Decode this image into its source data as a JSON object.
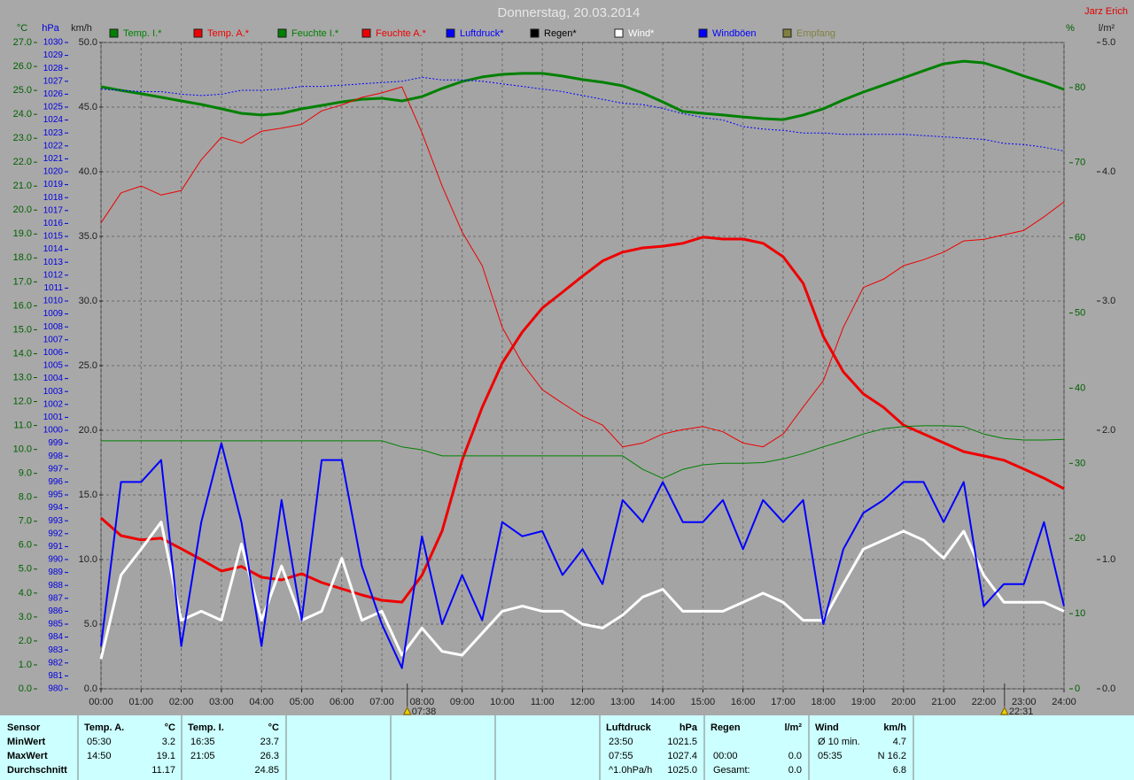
{
  "chart_data": {
    "type": "line",
    "title": "Donnerstag, 20.03.2014",
    "author": "Jarz Erich",
    "grid": true,
    "axes": {
      "c": {
        "label": "°C",
        "color": "#006000",
        "lim": [
          0,
          27
        ],
        "ticks": [
          {
            "value": 0,
            "label": "0.0"
          },
          {
            "value": 1,
            "label": "1.0"
          },
          {
            "value": 2,
            "label": "2.0"
          },
          {
            "value": 3,
            "label": "3.0"
          },
          {
            "value": 4,
            "label": "4.0"
          },
          {
            "value": 5,
            "label": "5.0"
          },
          {
            "value": 6,
            "label": "6.0"
          },
          {
            "value": 7,
            "label": "7.0"
          },
          {
            "value": 8,
            "label": "8.0"
          },
          {
            "value": 9,
            "label": "9.0"
          },
          {
            "value": 10,
            "label": "10.0"
          },
          {
            "value": 11,
            "label": "11.0"
          },
          {
            "value": 12,
            "label": "12.0"
          },
          {
            "value": 13,
            "label": "13.0"
          },
          {
            "value": 14,
            "label": "14.0"
          },
          {
            "value": 15,
            "label": "15.0"
          },
          {
            "value": 16,
            "label": "16.0"
          },
          {
            "value": 17,
            "label": "17.0"
          },
          {
            "value": 18,
            "label": "18.0"
          },
          {
            "value": 19,
            "label": "19.0"
          },
          {
            "value": 20,
            "label": "20.0"
          },
          {
            "value": 21,
            "label": "21.0"
          },
          {
            "value": 22,
            "label": "22.0"
          },
          {
            "value": 23,
            "label": "23.0"
          },
          {
            "value": 24,
            "label": "24.0"
          },
          {
            "value": 25,
            "label": "25.0"
          },
          {
            "value": 26,
            "label": "26.0"
          },
          {
            "value": 27,
            "label": "27.0"
          }
        ]
      },
      "hpa": {
        "label": "hPa",
        "color": "#0000e0",
        "lim": [
          980,
          1030
        ],
        "ticks": [
          980,
          981,
          982,
          983,
          984,
          985,
          986,
          987,
          988,
          989,
          990,
          991,
          992,
          993,
          994,
          995,
          996,
          997,
          998,
          999,
          1000,
          1001,
          1002,
          1003,
          1004,
          1005,
          1006,
          1007,
          1008,
          1009,
          1010,
          1011,
          1012,
          1013,
          1014,
          1015,
          1016,
          1017,
          1018,
          1019,
          1020,
          1021,
          1022,
          1023,
          1024,
          1025,
          1026,
          1027,
          1028,
          1029,
          1030
        ]
      },
      "kmh": {
        "label": "km/h",
        "color": "#202020",
        "lim": [
          0,
          50
        ],
        "ticks": [
          {
            "value": 0,
            "label": "0.0"
          },
          {
            "value": 5,
            "label": "5.0"
          },
          {
            "value": 10,
            "label": "10.0"
          },
          {
            "value": 15,
            "label": "15.0"
          },
          {
            "value": 20,
            "label": "20.0"
          },
          {
            "value": 25,
            "label": "25.0"
          },
          {
            "value": 30,
            "label": "30.0"
          },
          {
            "value": 35,
            "label": "35.0"
          },
          {
            "value": 40,
            "label": "40.0"
          },
          {
            "value": 45,
            "label": "45.0"
          },
          {
            "value": 50,
            "label": "50.0"
          }
        ]
      },
      "pct": {
        "label": "%",
        "color": "#006000",
        "lim": [
          0,
          86
        ],
        "ticks": [
          0,
          10,
          20,
          30,
          40,
          50,
          60,
          70,
          80
        ]
      },
      "lm2": {
        "label": "l/m²",
        "color": "#202020",
        "lim": [
          0,
          5
        ],
        "ticks": [
          {
            "value": 0,
            "label": "0.0"
          },
          {
            "value": 1,
            "label": "1.0"
          },
          {
            "value": 2,
            "label": "2.0"
          },
          {
            "value": 3,
            "label": "3.0"
          },
          {
            "value": 4,
            "label": "4.0"
          },
          {
            "value": 5,
            "label": "5.0"
          }
        ]
      }
    },
    "xlim": [
      0,
      24
    ],
    "xticks": [
      {
        "value": 0,
        "label": "00:00"
      },
      {
        "value": 1,
        "label": "01:00"
      },
      {
        "value": 2,
        "label": "02:00"
      },
      {
        "value": 3,
        "label": "03:00"
      },
      {
        "value": 4,
        "label": "04:00"
      },
      {
        "value": 5,
        "label": "05:00"
      },
      {
        "value": 6,
        "label": "06:00"
      },
      {
        "value": 7,
        "label": "07:00"
      },
      {
        "value": 8,
        "label": "08:00"
      },
      {
        "value": 9,
        "label": "09:00"
      },
      {
        "value": 10,
        "label": "10:00"
      },
      {
        "value": 11,
        "label": "11:00"
      },
      {
        "value": 12,
        "label": "12:00"
      },
      {
        "value": 13,
        "label": "13:00"
      },
      {
        "value": 14,
        "label": "14:00"
      },
      {
        "value": 15,
        "label": "15:00"
      },
      {
        "value": 16,
        "label": "16:00"
      },
      {
        "value": 17,
        "label": "17:00"
      },
      {
        "value": 18,
        "label": "18:00"
      },
      {
        "value": 19,
        "label": "19:00"
      },
      {
        "value": 20,
        "label": "20:00"
      },
      {
        "value": 21,
        "label": "21:00"
      },
      {
        "value": 22,
        "label": "22:00"
      },
      {
        "value": 23,
        "label": "23:00"
      },
      {
        "value": 24,
        "label": "24:00"
      }
    ],
    "markers": [
      {
        "x": 7.633,
        "label": "07:38"
      },
      {
        "x": 22.517,
        "label": "22:31"
      }
    ],
    "x": [
      0,
      0.5,
      1,
      1.5,
      2,
      2.5,
      3,
      3.5,
      4,
      4.5,
      5,
      5.5,
      6,
      6.5,
      7,
      7.5,
      8,
      8.5,
      9,
      9.5,
      10,
      10.5,
      11,
      11.5,
      12,
      12.5,
      13,
      13.5,
      14,
      14.5,
      15,
      15.5,
      16,
      16.5,
      17,
      17.5,
      18,
      18.5,
      19,
      19.5,
      20,
      20.5,
      21,
      21.5,
      22,
      22.5,
      23,
      23.5,
      24
    ],
    "series": [
      {
        "name": "Temp. I.*",
        "color": "#008000",
        "axis": "c",
        "line_width": 3,
        "values": [
          25.15,
          25.0,
          24.86,
          24.71,
          24.56,
          24.41,
          24.23,
          24.04,
          23.97,
          24.04,
          24.23,
          24.37,
          24.52,
          24.63,
          24.67,
          24.56,
          24.74,
          25.08,
          25.37,
          25.56,
          25.67,
          25.71,
          25.71,
          25.6,
          25.45,
          25.34,
          25.19,
          24.89,
          24.52,
          24.12,
          24.04,
          23.97,
          23.89,
          23.82,
          23.78,
          23.97,
          24.23,
          24.6,
          24.93,
          25.22,
          25.52,
          25.82,
          26.11,
          26.22,
          26.15,
          25.89,
          25.6,
          25.34,
          25.04
        ]
      },
      {
        "name": "Temp. A.*",
        "color": "#ee0000",
        "axis": "c",
        "line_width": 3,
        "values": [
          7.14,
          6.4,
          6.22,
          6.29,
          5.85,
          5.4,
          4.92,
          5.11,
          4.66,
          4.55,
          4.81,
          4.44,
          4.18,
          3.92,
          3.7,
          3.62,
          4.74,
          6.59,
          9.55,
          11.76,
          13.61,
          14.91,
          15.91,
          16.57,
          17.24,
          17.87,
          18.24,
          18.42,
          18.49,
          18.61,
          18.87,
          18.79,
          18.79,
          18.61,
          18.05,
          16.94,
          14.72,
          13.24,
          12.32,
          11.76,
          11.02,
          10.65,
          10.28,
          9.91,
          9.73,
          9.55,
          9.18,
          8.8,
          8.36
        ]
      },
      {
        "name": "Feuchte I.*",
        "color": "#008000",
        "axis": "pct",
        "line_width": 1,
        "values": [
          33.0,
          33.0,
          33.0,
          33.0,
          33.0,
          33.0,
          33.0,
          33.0,
          33.0,
          33.0,
          33.0,
          33.0,
          33.0,
          33.0,
          33.0,
          32.2,
          31.8,
          31.0,
          31.0,
          31.0,
          31.0,
          31.0,
          31.0,
          31.0,
          31.0,
          31.0,
          31.0,
          29.2,
          28.0,
          29.2,
          29.8,
          30.0,
          30.0,
          30.1,
          30.6,
          31.3,
          32.2,
          33.0,
          33.9,
          34.6,
          34.9,
          35.0,
          35.0,
          34.9,
          33.9,
          33.3,
          33.1,
          33.1,
          33.2
        ]
      },
      {
        "name": "Feuchte A.*",
        "color": "#ee0000",
        "axis": "pct",
        "line_width": 1,
        "values": [
          62.0,
          66.0,
          66.9,
          65.7,
          66.3,
          70.4,
          73.4,
          72.6,
          74.2,
          74.6,
          75.1,
          76.9,
          77.7,
          78.7,
          79.3,
          80.1,
          74.0,
          66.9,
          60.8,
          56.3,
          48.1,
          43.3,
          39.8,
          38.0,
          36.3,
          35.1,
          32.2,
          32.7,
          33.9,
          34.5,
          34.9,
          34.2,
          32.7,
          32.2,
          33.9,
          37.5,
          41.0,
          48.1,
          53.4,
          54.5,
          56.3,
          57.1,
          58.1,
          59.6,
          59.8,
          60.4,
          61.0,
          62.8,
          64.8
        ]
      },
      {
        "name": "Luftdruck*",
        "color": "#0000ff",
        "axis": "hpa",
        "line_width": 1,
        "dash": true,
        "values": [
          1026.4,
          1026.3,
          1026.2,
          1026.2,
          1026.0,
          1025.9,
          1026.0,
          1026.3,
          1026.3,
          1026.4,
          1026.6,
          1026.6,
          1026.7,
          1026.8,
          1026.9,
          1027.0,
          1027.3,
          1027.1,
          1027.1,
          1027.0,
          1026.8,
          1026.6,
          1026.4,
          1026.2,
          1025.9,
          1025.6,
          1025.3,
          1025.2,
          1024.9,
          1024.5,
          1024.2,
          1024.0,
          1023.5,
          1023.3,
          1023.2,
          1023.0,
          1023.0,
          1022.9,
          1022.9,
          1022.9,
          1022.9,
          1022.8,
          1022.7,
          1022.6,
          1022.5,
          1022.2,
          1022.1,
          1021.9,
          1021.6
        ]
      },
      {
        "name": "Regen*",
        "color": "#000000",
        "axis": "lm2"
      },
      {
        "name": "Wind*",
        "color": "#ffffff",
        "axis": "kmh",
        "line_width": 3,
        "values": [
          2.3,
          8.8,
          10.8,
          12.9,
          5.3,
          6.0,
          5.3,
          11.2,
          5.3,
          9.5,
          5.3,
          6.0,
          10.1,
          5.3,
          6.0,
          2.6,
          4.7,
          2.9,
          2.6,
          4.3,
          6.0,
          6.4,
          6.0,
          6.0,
          5.0,
          4.7,
          5.7,
          7.1,
          7.7,
          6.0,
          6.0,
          6.0,
          6.7,
          7.4,
          6.7,
          5.3,
          5.3,
          8.1,
          10.8,
          11.5,
          12.2,
          11.5,
          10.1,
          12.2,
          8.8,
          6.7,
          6.7,
          6.7,
          6.0
        ]
      },
      {
        "name": "Windböen",
        "color": "#0000ff",
        "axis": "kmh",
        "line_width": 2,
        "values": [
          3.3,
          16.0,
          16.0,
          17.7,
          3.3,
          12.9,
          19.0,
          12.9,
          3.3,
          14.6,
          5.3,
          17.7,
          17.7,
          9.5,
          5.0,
          1.6,
          11.8,
          5.0,
          8.8,
          5.3,
          12.9,
          11.8,
          12.2,
          8.8,
          10.8,
          8.1,
          14.6,
          12.9,
          16.0,
          12.9,
          12.9,
          14.6,
          10.8,
          14.6,
          12.9,
          14.6,
          5.0,
          10.8,
          13.6,
          14.6,
          16.0,
          16.0,
          12.9,
          16.0,
          6.4,
          8.1,
          8.1,
          12.9,
          6.4
        ]
      },
      {
        "name": "Empfang",
        "color": "#808040",
        "axis": "pct"
      }
    ]
  },
  "stats": {
    "row_labels": [
      "Sensor",
      "MinWert",
      "MaxWert",
      "Durchschnitt"
    ],
    "groups": [
      {
        "name": "Temp. A.",
        "unit": "°C",
        "rows": [
          [
            "05:30",
            "3.2"
          ],
          [
            "14:50",
            "19.1"
          ],
          [
            null,
            "11.17"
          ]
        ]
      },
      {
        "name": "Temp. I.",
        "unit": "°C",
        "rows": [
          [
            "16:35",
            "23.7"
          ],
          [
            "21:05",
            "26.3"
          ],
          [
            null,
            "24.85"
          ]
        ]
      },
      {
        "name": "Luftdruck",
        "unit": "hPa",
        "rows": [
          [
            "23:50",
            "1021.5"
          ],
          [
            "07:55",
            "1027.4"
          ],
          [
            "^1.0hPa/h",
            "1025.0"
          ]
        ]
      },
      {
        "name": "Regen",
        "unit": "l/m²",
        "rows": [
          [
            null,
            null
          ],
          [
            "00:00",
            "0.0"
          ],
          [
            "Gesamt:",
            "0.0"
          ]
        ]
      },
      {
        "name": "Wind",
        "unit": "km/h",
        "rows": [
          [
            "Ø 10 min.",
            "4.7"
          ],
          [
            "05:35",
            "N 16.2"
          ],
          [
            null,
            "6.8"
          ]
        ]
      }
    ]
  }
}
